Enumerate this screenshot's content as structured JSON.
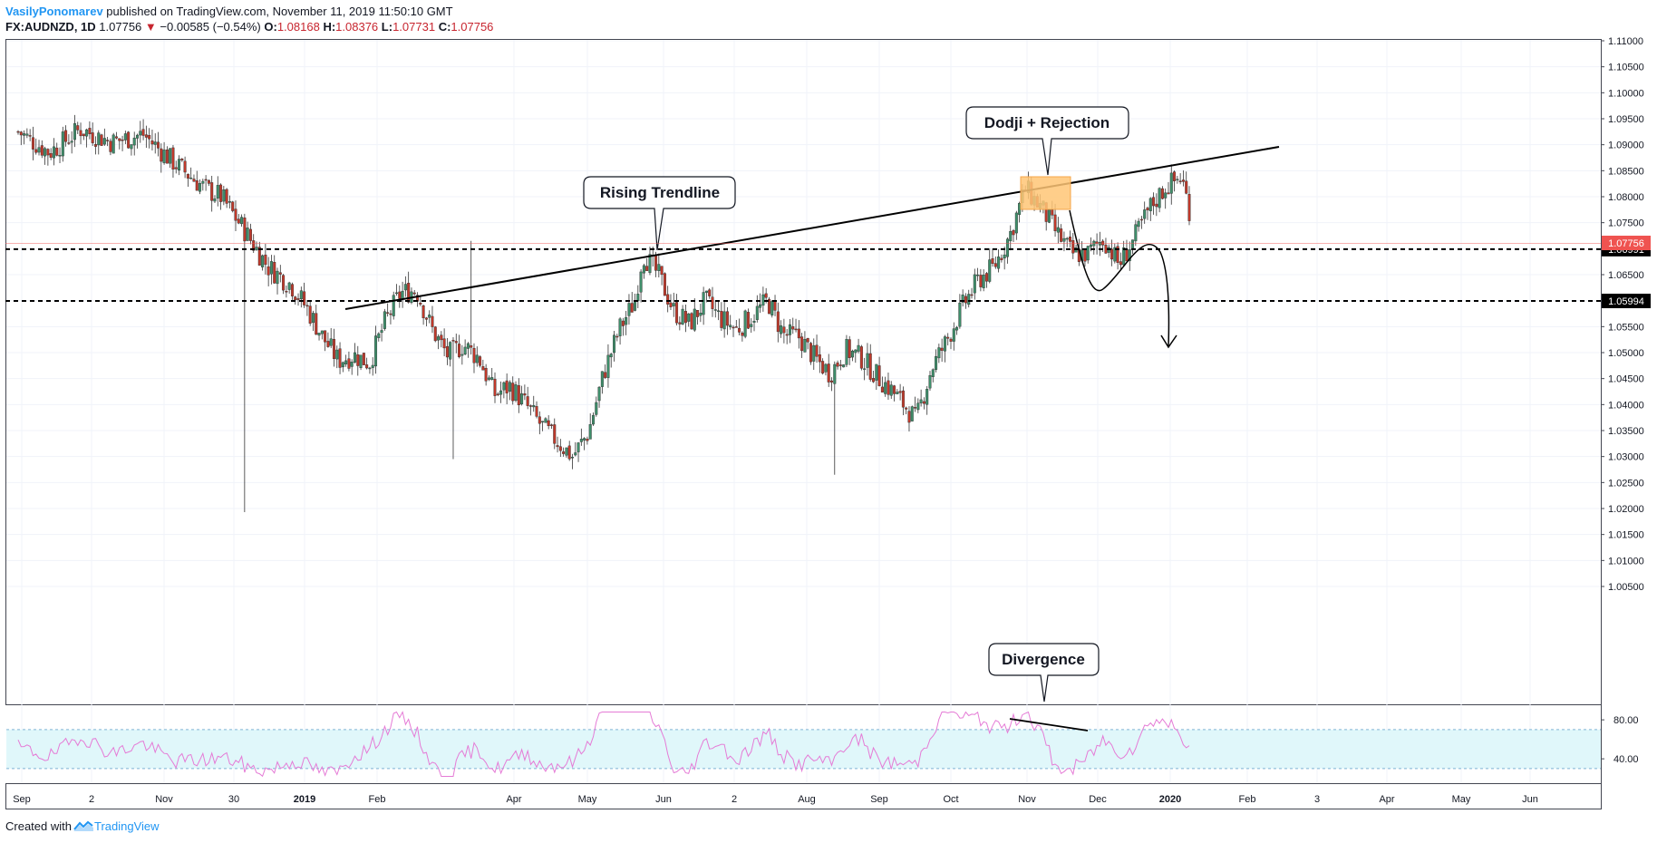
{
  "header": {
    "author": "VasilyPonomarev",
    "published": "published on TradingView.com, November 11, 2019 11:50:10 GMT",
    "symbol": "FX:AUDNZD, 1D",
    "last": "1.07756",
    "arrow": "▼",
    "change": "−0.00585 (−0.54%)",
    "o_label": "O:",
    "o_value": "1.08168",
    "h_label": "H:",
    "h_value": "1.08376",
    "l_label": "L:",
    "l_value": "1.07731",
    "c_label": "C:",
    "c_value": "1.07756"
  },
  "footer": {
    "created": "Created with",
    "brand": "TradingView"
  },
  "colors": {
    "up": "#26a69a",
    "down": "#ef5350",
    "candle_up": "#3f8f6b",
    "candle_down": "#c0392b",
    "rsi": "#e57bd6",
    "rsi_band": "#e0f7fa",
    "zone": "#ffc676",
    "price_tag": "#ef5350"
  },
  "chart_data": {
    "type": "candlestick",
    "symbol": "FX:AUDNZD",
    "interval": "1D",
    "price_axis": {
      "range": [
        1.002,
        1.1115
      ],
      "ticks": [
        "1.11000",
        "1.10500",
        "1.10000",
        "1.09500",
        "1.09000",
        "1.08500",
        "1.08000",
        "1.07500",
        "1.07000",
        "1.06500",
        "1.06000",
        "1.05500",
        "1.05000",
        "1.04500",
        "1.04000",
        "1.03500",
        "1.03000",
        "1.02500",
        "1.02000",
        "1.01500",
        "1.01000",
        "1.00500"
      ]
    },
    "time_axis": {
      "labels": [
        {
          "text": "Sep",
          "bold": false
        },
        {
          "text": "2",
          "bold": false
        },
        {
          "text": "Nov",
          "bold": false
        },
        {
          "text": "30",
          "bold": false
        },
        {
          "text": "2019",
          "bold": true
        },
        {
          "text": "Feb",
          "bold": false
        },
        {
          "text": "Apr",
          "bold": false
        },
        {
          "text": "May",
          "bold": false
        },
        {
          "text": "Jun",
          "bold": false
        },
        {
          "text": "2",
          "bold": false
        },
        {
          "text": "Aug",
          "bold": false
        },
        {
          "text": "Sep",
          "bold": false
        },
        {
          "text": "Oct",
          "bold": false
        },
        {
          "text": "Nov",
          "bold": false
        },
        {
          "text": "Dec",
          "bold": false
        },
        {
          "text": "2020",
          "bold": true
        },
        {
          "text": "Feb",
          "bold": false
        },
        {
          "text": "3",
          "bold": false
        },
        {
          "text": "Apr",
          "bold": false
        },
        {
          "text": "May",
          "bold": false
        },
        {
          "text": "Jun",
          "bold": false
        }
      ]
    },
    "price_path": [
      [
        2018.62,
        1.0925
      ],
      [
        2018.66,
        1.0885
      ],
      [
        2018.7,
        1.093
      ],
      [
        2018.74,
        1.0905
      ],
      [
        2018.78,
        1.092
      ],
      [
        2018.82,
        1.0865
      ],
      [
        2018.86,
        1.0815
      ],
      [
        2018.88,
        1.08
      ],
      [
        2018.91,
        1.0735
      ],
      [
        2018.94,
        1.0665
      ],
      [
        2018.97,
        1.063
      ],
      [
        2018.99,
        1.0585
      ],
      [
        2019.01,
        1.053
      ],
      [
        2019.03,
        1.0485
      ],
      [
        2019.05,
        1.0495
      ],
      [
        2019.07,
        1.048
      ],
      [
        2019.09,
        1.056
      ],
      [
        2019.11,
        1.0615
      ],
      [
        2019.13,
        1.062
      ],
      [
        2019.15,
        1.0545
      ],
      [
        2019.17,
        1.0495
      ],
      [
        2019.19,
        1.0515
      ],
      [
        2019.21,
        1.049
      ],
      [
        2019.23,
        1.042
      ],
      [
        2019.25,
        1.0435
      ],
      [
        2019.27,
        1.04
      ],
      [
        2019.29,
        1.036
      ],
      [
        2019.31,
        1.033
      ],
      [
        2019.33,
        1.03
      ],
      [
        2019.35,
        1.0345
      ],
      [
        2019.37,
        1.046
      ],
      [
        2019.39,
        1.0545
      ],
      [
        2019.41,
        1.06
      ],
      [
        2019.42,
        1.069
      ],
      [
        2019.44,
        1.065
      ],
      [
        2019.46,
        1.058
      ],
      [
        2019.48,
        1.0555
      ],
      [
        2019.5,
        1.06
      ],
      [
        2019.52,
        1.0565
      ],
      [
        2019.54,
        1.0545
      ],
      [
        2019.56,
        1.057
      ],
      [
        2019.58,
        1.06
      ],
      [
        2019.6,
        1.0535
      ],
      [
        2019.62,
        1.053
      ],
      [
        2019.64,
        1.049
      ],
      [
        2019.66,
        1.046
      ],
      [
        2019.68,
        1.0505
      ],
      [
        2019.7,
        1.049
      ],
      [
        2019.72,
        1.0455
      ],
      [
        2019.74,
        1.0425
      ],
      [
        2019.76,
        1.039
      ],
      [
        2019.77,
        1.037
      ],
      [
        2019.79,
        1.047
      ],
      [
        2019.81,
        1.0525
      ],
      [
        2019.83,
        1.059
      ],
      [
        2019.85,
        1.064
      ],
      [
        2019.87,
        1.0665
      ],
      [
        2019.89,
        1.0725
      ],
      [
        2019.91,
        1.0815
      ],
      [
        2019.93,
        1.078
      ],
      [
        2019.95,
        1.073
      ],
      [
        2019.97,
        1.069
      ],
      [
        2019.99,
        1.069
      ],
      [
        2020.01,
        1.072
      ],
      [
        2020.03,
        1.067
      ],
      [
        2020.05,
        1.072
      ],
      [
        2020.07,
        1.078
      ],
      [
        2020.09,
        1.082
      ],
      [
        2020.11,
        1.0838
      ],
      [
        2020.12,
        1.0776
      ]
    ],
    "last_price": "1.07756",
    "levels": [
      {
        "label": "1.06991",
        "value": 1.06991,
        "style": "dashed"
      },
      {
        "label": "1.05994",
        "value": 1.05994,
        "style": "dashed"
      }
    ],
    "annotations": [
      {
        "text": "Rising Trendline",
        "kind": "callout"
      },
      {
        "text": "Dodji + Rejection",
        "kind": "callout"
      },
      {
        "text": "Divergence",
        "kind": "callout"
      }
    ],
    "rsi": {
      "band": [
        30,
        70
      ],
      "ticks": [
        "80.00",
        "40.00"
      ],
      "range": [
        15,
        95
      ]
    }
  }
}
